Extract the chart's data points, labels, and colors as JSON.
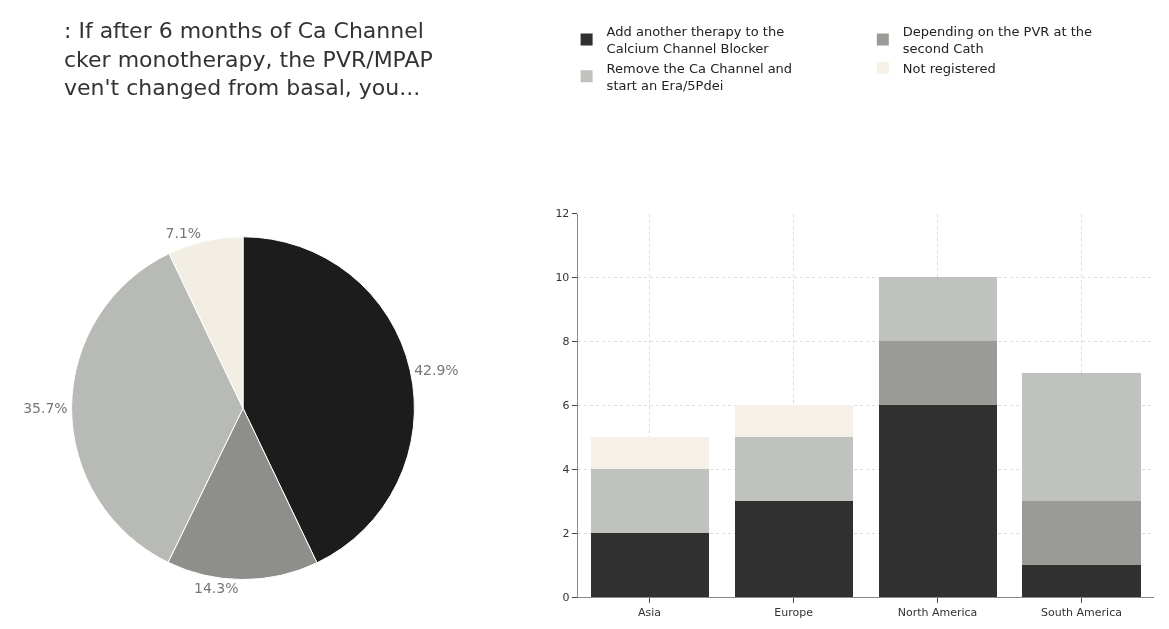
{
  "chart_data": [
    {
      "type": "pie",
      "title": ": If after 6 months of Ca Channel\ncker monotherapy, the PVR/MPAP\nven't changed from basal, you...",
      "categories": [
        null,
        null,
        null,
        null
      ],
      "values": [
        42.9,
        14.3,
        35.7,
        7.1
      ],
      "value_labels": [
        "42.9%",
        "14.3%",
        "35.7%",
        "7.1%"
      ],
      "colors": [
        "#1c1c1c",
        "#8e8f8a",
        "#b8bab6",
        "#f2eee4"
      ]
    },
    {
      "type": "bar",
      "stacked": true,
      "categories": [
        "Asia",
        "Europe",
        "North America",
        "South America"
      ],
      "series": [
        {
          "name": "Add another therapy to the Calcium Channel Blocker",
          "color": "#303030",
          "values": [
            2,
            3,
            6,
            1
          ]
        },
        {
          "name": "Depending on the PVR at the second Cath",
          "color": "#9a9a96",
          "values": [
            0,
            0,
            2,
            2
          ]
        },
        {
          "name": "Remove the Ca Channel and start an Era/5Pdei",
          "color": "#bfc2bd",
          "values": [
            2,
            2,
            2,
            4
          ]
        },
        {
          "name": "Not registered",
          "color": "#f5f1e6",
          "values": [
            1,
            1,
            0,
            0
          ]
        }
      ],
      "ylim": [
        0,
        12
      ],
      "yticks": [
        0,
        2,
        4,
        6,
        8,
        10,
        12
      ],
      "grid": true,
      "legend": "top"
    }
  ]
}
